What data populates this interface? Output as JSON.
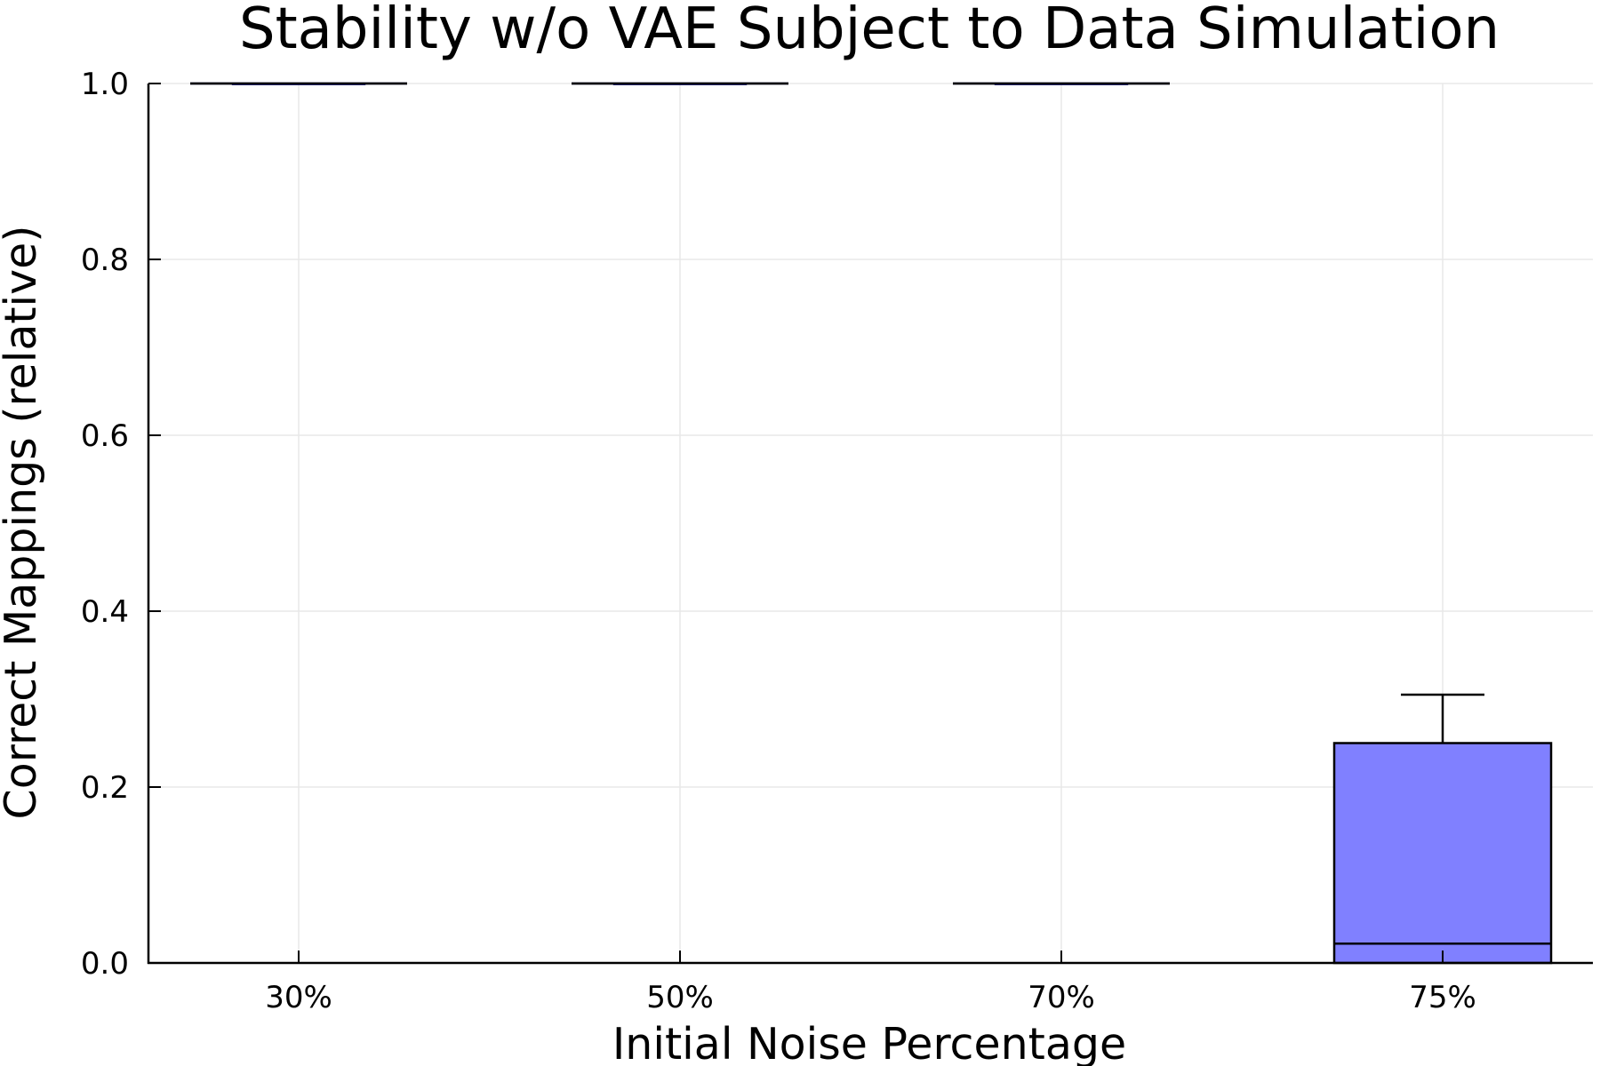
{
  "chart_data": {
    "type": "box",
    "title": "Stability w/o VAE Subject to Data Simulation",
    "xlabel": "Initial Noise Percentage",
    "ylabel": "Correct Mappings (relative)",
    "ylim": [
      0.0,
      1.0
    ],
    "yticks": [
      "0.0",
      "0.2",
      "0.4",
      "0.6",
      "0.8",
      "1.0"
    ],
    "grid": true,
    "legend": "none",
    "categories": [
      "30%",
      "50%",
      "70%",
      "75%"
    ],
    "boxes": [
      {
        "category": "30%",
        "min": 1.0,
        "q1": 1.0,
        "median": 1.0,
        "q3": 1.0,
        "max": 1.0
      },
      {
        "category": "50%",
        "min": 1.0,
        "q1": 1.0,
        "median": 1.0,
        "q3": 1.0,
        "max": 1.0
      },
      {
        "category": "70%",
        "min": 1.0,
        "q1": 1.0,
        "median": 1.0,
        "q3": 1.0,
        "max": 1.0
      },
      {
        "category": "75%",
        "min": 0.0,
        "q1": 0.0,
        "median": 0.022,
        "q3": 0.25,
        "max": 0.305
      }
    ],
    "colors": {
      "box_fill": "#8080ff",
      "box_edge": "#000000",
      "grid": "#e8e8e8",
      "axis": "#000000"
    }
  }
}
